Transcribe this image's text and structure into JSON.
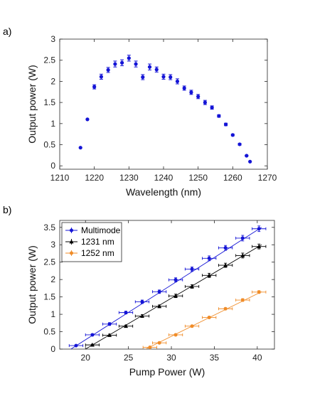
{
  "chart_data": [
    {
      "panel_label": "a)",
      "type": "scatter",
      "xlabel": "Wavelength (nm)",
      "ylabel": "Output power (W)",
      "xlim": [
        1210,
        1270
      ],
      "ylim": [
        -0.08,
        3.0
      ],
      "xticks": [
        1210,
        1220,
        1230,
        1240,
        1250,
        1260,
        1270
      ],
      "yticks": [
        0,
        0.5,
        1,
        1.5,
        2,
        2.5,
        3
      ],
      "grid": false,
      "color": "#1414d6",
      "series": [
        {
          "x": [
            1216,
            1218,
            1220,
            1222,
            1224,
            1226,
            1228,
            1230,
            1232,
            1234,
            1236,
            1238,
            1240,
            1242,
            1244,
            1246,
            1248,
            1250,
            1252,
            1254,
            1256,
            1258,
            1260,
            1262,
            1264,
            1265
          ],
          "y": [
            0.43,
            1.1,
            1.87,
            2.11,
            2.27,
            2.41,
            2.44,
            2.55,
            2.41,
            2.1,
            2.34,
            2.28,
            2.11,
            2.1,
            2.0,
            1.84,
            1.74,
            1.64,
            1.5,
            1.38,
            1.18,
            0.98,
            0.73,
            0.51,
            0.24,
            0.1
          ],
          "err": [
            0,
            0,
            0.05,
            0.06,
            0.06,
            0.07,
            0.07,
            0.07,
            0.07,
            0.06,
            0.07,
            0.06,
            0.06,
            0.06,
            0.06,
            0.05,
            0.05,
            0.05,
            0.05,
            0.04,
            0.03,
            0.03,
            0.02,
            0.02,
            0.01,
            0
          ]
        }
      ]
    },
    {
      "panel_label": "b)",
      "type": "line",
      "xlabel": "Pump Power (W)",
      "ylabel": "Output power (W)",
      "xlim": [
        17,
        42
      ],
      "ylim": [
        0,
        3.7
      ],
      "xticks": [
        20,
        25,
        30,
        35,
        40
      ],
      "yticks": [
        0,
        0.5,
        1,
        1.5,
        2,
        2.5,
        3,
        3.5
      ],
      "grid": false,
      "legend": "top-left",
      "series": [
        {
          "name": "Multimode",
          "color": "#1414d6",
          "marker": "circle",
          "x": [
            18.9,
            20.8,
            22.8,
            24.7,
            26.6,
            28.6,
            30.5,
            32.4,
            34.4,
            36.3,
            38.3,
            40.2
          ],
          "y": [
            0.1,
            0.41,
            0.72,
            1.05,
            1.36,
            1.65,
            1.99,
            2.3,
            2.61,
            2.91,
            3.19,
            3.46
          ],
          "xerr": 0.8,
          "yerr": [
            0.02,
            0.03,
            0.04,
            0.04,
            0.05,
            0.05,
            0.06,
            0.06,
            0.07,
            0.07,
            0.08,
            0.08
          ],
          "fit": [
            [
              18.3,
              0.0
            ],
            [
              40.5,
              3.5
            ]
          ]
        },
        {
          "name": "1231 nm",
          "color": "#000000",
          "marker": "triangle",
          "x": [
            20.8,
            22.8,
            24.7,
            26.6,
            28.6,
            30.5,
            32.4,
            34.4,
            36.3,
            38.3,
            40.2
          ],
          "y": [
            0.12,
            0.4,
            0.66,
            0.95,
            1.23,
            1.53,
            1.8,
            2.12,
            2.41,
            2.69,
            2.95
          ],
          "xerr": 0.8,
          "yerr": [
            0.02,
            0.03,
            0.03,
            0.04,
            0.04,
            0.05,
            0.05,
            0.06,
            0.06,
            0.07,
            0.07
          ],
          "fit": [
            [
              20.0,
              0.0
            ],
            [
              40.5,
              3.0
            ]
          ]
        },
        {
          "name": "1252 nm",
          "color": "#f08c28",
          "marker": "circle",
          "x": [
            27.5,
            28.6,
            30.5,
            32.4,
            34.4,
            36.3,
            38.3,
            40.2
          ],
          "y": [
            0.05,
            0.18,
            0.41,
            0.66,
            0.91,
            1.16,
            1.41,
            1.64
          ],
          "xerr": 0.8,
          "yerr": [
            0.01,
            0.02,
            0.02,
            0.03,
            0.03,
            0.03,
            0.04,
            0.04
          ],
          "fit": [
            [
              27.0,
              0.0
            ],
            [
              40.5,
              1.65
            ]
          ]
        }
      ]
    }
  ]
}
